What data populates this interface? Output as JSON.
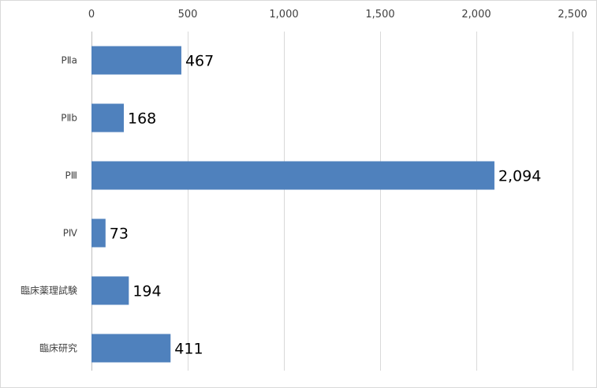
{
  "chart_data": {
    "type": "bar",
    "orientation": "horizontal",
    "categories": [
      "PⅡa",
      "PⅡb",
      "PⅢ",
      "PⅣ",
      "臨床薬理試験",
      "臨床研究"
    ],
    "values": [
      467,
      168,
      2094,
      73,
      194,
      411
    ],
    "value_labels": [
      "467",
      "168",
      "2,094",
      "73",
      "194",
      "411"
    ],
    "xlim": [
      0,
      2500
    ],
    "x_ticks": [
      0,
      500,
      1000,
      1500,
      2000,
      2500
    ],
    "x_tick_labels": [
      "0",
      "500",
      "1,000",
      "1,500",
      "2,000",
      "2,500"
    ],
    "x_axis_position": "top",
    "grid": true,
    "legend": "none",
    "title": "",
    "xlabel": "",
    "ylabel": "",
    "colors": {
      "bar": "#4f81bd",
      "grid": "#d9d9d9"
    }
  }
}
